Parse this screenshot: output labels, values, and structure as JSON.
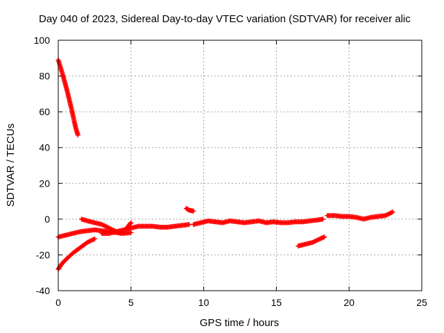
{
  "chart_data": {
    "type": "scatter",
    "title": "Day 040 of 2023, Sidereal Day-to-day VTEC variation (SDTVAR) for receiver alic",
    "xlabel": "GPS time / hours",
    "ylabel": "SDTVAR / TECUs",
    "xlim": [
      0,
      25
    ],
    "ylim": [
      -40,
      100
    ],
    "xticks": [
      0,
      5,
      10,
      15,
      20,
      25
    ],
    "yticks": [
      -40,
      -20,
      0,
      20,
      40,
      60,
      80,
      100
    ],
    "grid": true,
    "legend": "none",
    "marker": "plus",
    "color": "#ff0000",
    "series": [
      {
        "segments": [
          {
            "x": [
              0.0,
              0.3,
              0.6,
              0.9,
              1.2,
              1.35
            ],
            "y": [
              89,
              81,
              72,
              62,
              51,
              47
            ]
          },
          {
            "x": [
              0.0,
              0.15,
              0.35,
              0.6
            ],
            "y": [
              -28,
              -26,
              -24,
              -22
            ]
          },
          {
            "x": [
              0.6,
              1.0,
              1.5,
              2.0,
              2.5
            ],
            "y": [
              -22,
              -19,
              -16,
              -13,
              -11
            ]
          },
          {
            "x": [
              0.0,
              0.5,
              1.0,
              1.5,
              2.0,
              2.5,
              3.0,
              3.5,
              4.0,
              4.5,
              5.0
            ],
            "y": [
              -10,
              -9,
              -8,
              -7,
              -6.5,
              -6,
              -6.5,
              -7,
              -7.5,
              -8,
              -7.5
            ]
          },
          {
            "x": [
              1.6,
              2.0,
              2.5,
              3.0,
              3.5,
              4.0,
              4.3
            ],
            "y": [
              0,
              -1,
              -2,
              -3,
              -5,
              -7,
              -8
            ]
          },
          {
            "x": [
              3.0,
              3.5,
              4.0,
              4.5,
              5.0,
              5.5,
              6.0,
              6.5,
              7.0,
              7.5,
              8.0,
              8.5,
              9.0
            ],
            "y": [
              -8,
              -8,
              -7,
              -6,
              -5,
              -4,
              -4,
              -4,
              -4.5,
              -4.5,
              -4,
              -3.5,
              -3
            ]
          },
          {
            "x": [
              4.5,
              4.8,
              5.0
            ],
            "y": [
              -7,
              -4,
              -2
            ]
          },
          {
            "x": [
              8.8,
              9.0,
              9.3
            ],
            "y": [
              6,
              5,
              4.5
            ]
          },
          {
            "x": [
              9.3,
              9.8,
              10.3,
              10.8,
              11.3,
              11.8,
              12.3,
              12.8,
              13.3,
              13.8,
              14.3,
              14.8,
              15.3,
              15.8,
              16.3,
              16.8,
              17.3,
              17.8,
              18.2
            ],
            "y": [
              -3,
              -2,
              -1,
              -1.5,
              -2,
              -1,
              -1.5,
              -2,
              -1.5,
              -1,
              -2,
              -1.5,
              -2,
              -2,
              -1.5,
              -1.5,
              -1,
              -0.5,
              0
            ]
          },
          {
            "x": [
              16.5,
              17.0,
              17.5,
              18.0,
              18.3
            ],
            "y": [
              -15,
              -14,
              -13,
              -11,
              -10
            ]
          },
          {
            "x": [
              18.5,
              19.0,
              19.5,
              20.0,
              20.5,
              21.0,
              21.5,
              22.0,
              22.5,
              23.0
            ],
            "y": [
              2,
              2,
              1.5,
              1.5,
              1,
              0,
              1,
              1.5,
              2,
              4
            ]
          }
        ]
      }
    ]
  }
}
